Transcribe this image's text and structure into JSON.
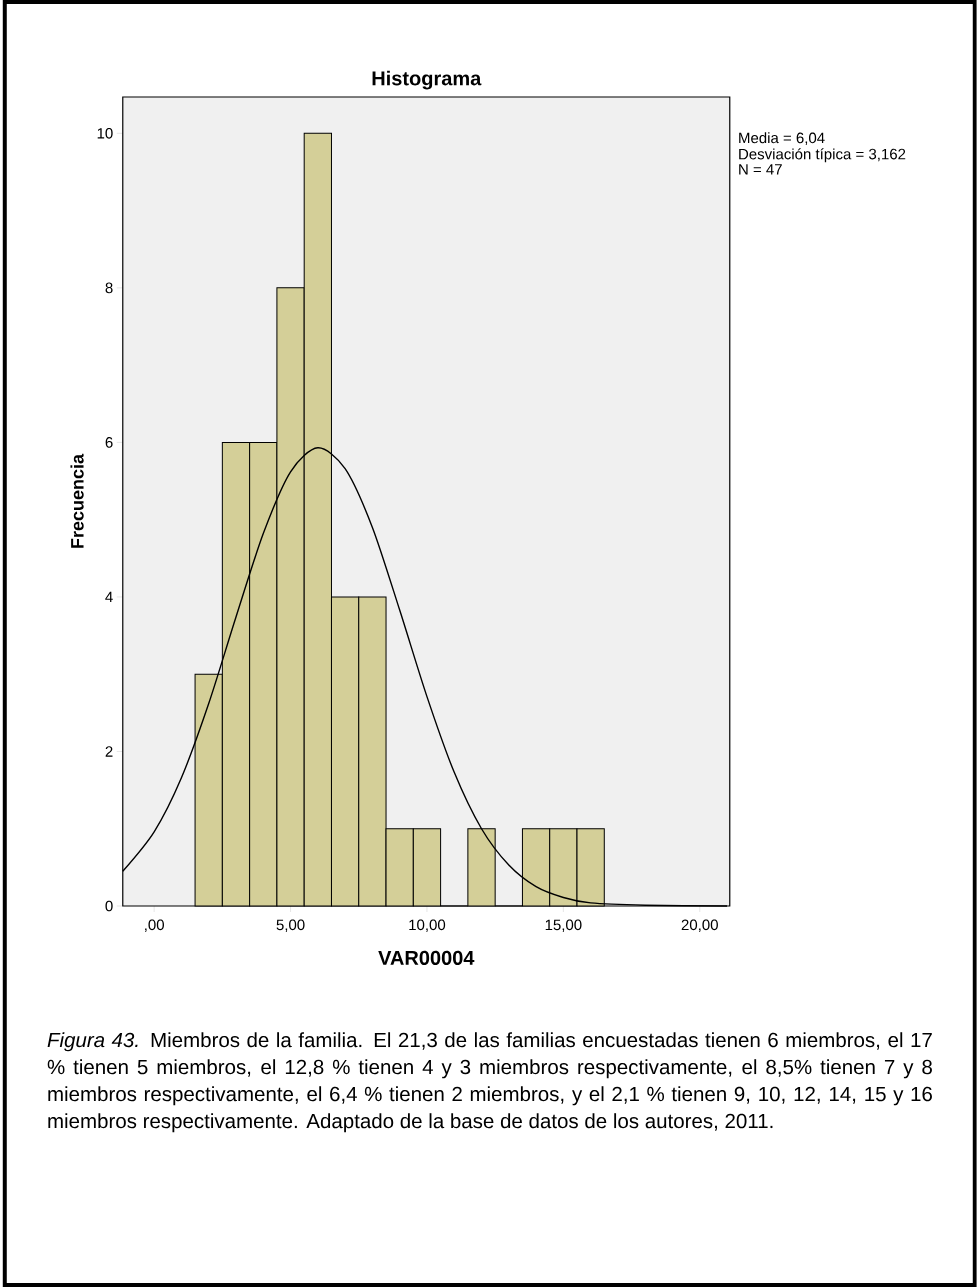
{
  "chart_data": {
    "type": "histogram",
    "title": "Histograma",
    "xlabel": "VAR00004",
    "ylabel": "Frecuencia",
    "bins": [
      1.5,
      2.5,
      3.5,
      4.5,
      5.5,
      6.5,
      7.5,
      8.5,
      9.5,
      10.5,
      11.5,
      12.5,
      13.5,
      14.5,
      15.5,
      16.5
    ],
    "values": [
      3,
      6,
      6,
      8,
      10,
      4,
      4,
      1,
      1,
      0,
      1,
      0,
      1,
      1,
      1
    ],
    "color": "#d4cf98",
    "series": [
      {
        "type": "line",
        "color": "#000000",
        "x": [
          -1.15,
          0,
          1,
          2,
          3,
          4,
          5,
          6,
          7,
          8,
          9,
          10,
          11,
          12,
          13,
          14,
          15,
          16,
          18,
          21
        ],
        "values": [
          0.45,
          0.96,
          1.66,
          2.62,
          3.74,
          4.82,
          5.62,
          5.93,
          5.66,
          4.9,
          3.83,
          2.71,
          1.73,
          1.0,
          0.53,
          0.25,
          0.11,
          0.04,
          0.01,
          0
        ]
      }
    ],
    "xlim": [
      -1.15,
      21.1
    ],
    "ylim": [
      0,
      10.47
    ],
    "xticks": [
      {
        "value": 0,
        "label": ",00"
      },
      {
        "value": 5,
        "label": "5,00"
      },
      {
        "value": 10,
        "label": "10,00"
      },
      {
        "value": 15,
        "label": "15,00"
      },
      {
        "value": 20,
        "label": "20,00"
      }
    ],
    "yticks": [
      0,
      2,
      4,
      6,
      8,
      10
    ],
    "annotations": [
      "Media = 6,04",
      "Desviación típica = 3,162",
      "N = 47",
      "*Figura 43.* Miembros de la familia. El 21,3 de las familias encuestadas tienen 6 miembros, el 17 % tienen 5 miembros, el 12,8 % tienen 4 y 3 miembros respectivamente, el 8,5% tienen 7 y 8 miembros respectivamente, el 6,4 % tienen 2 miembros, y el 2,1 % tienen 9, 10, 12, 14, 15 y 16 miembros respectivamente. Adaptado de la base de datos de los autores, 2011."
    ],
    "grid": false
  }
}
